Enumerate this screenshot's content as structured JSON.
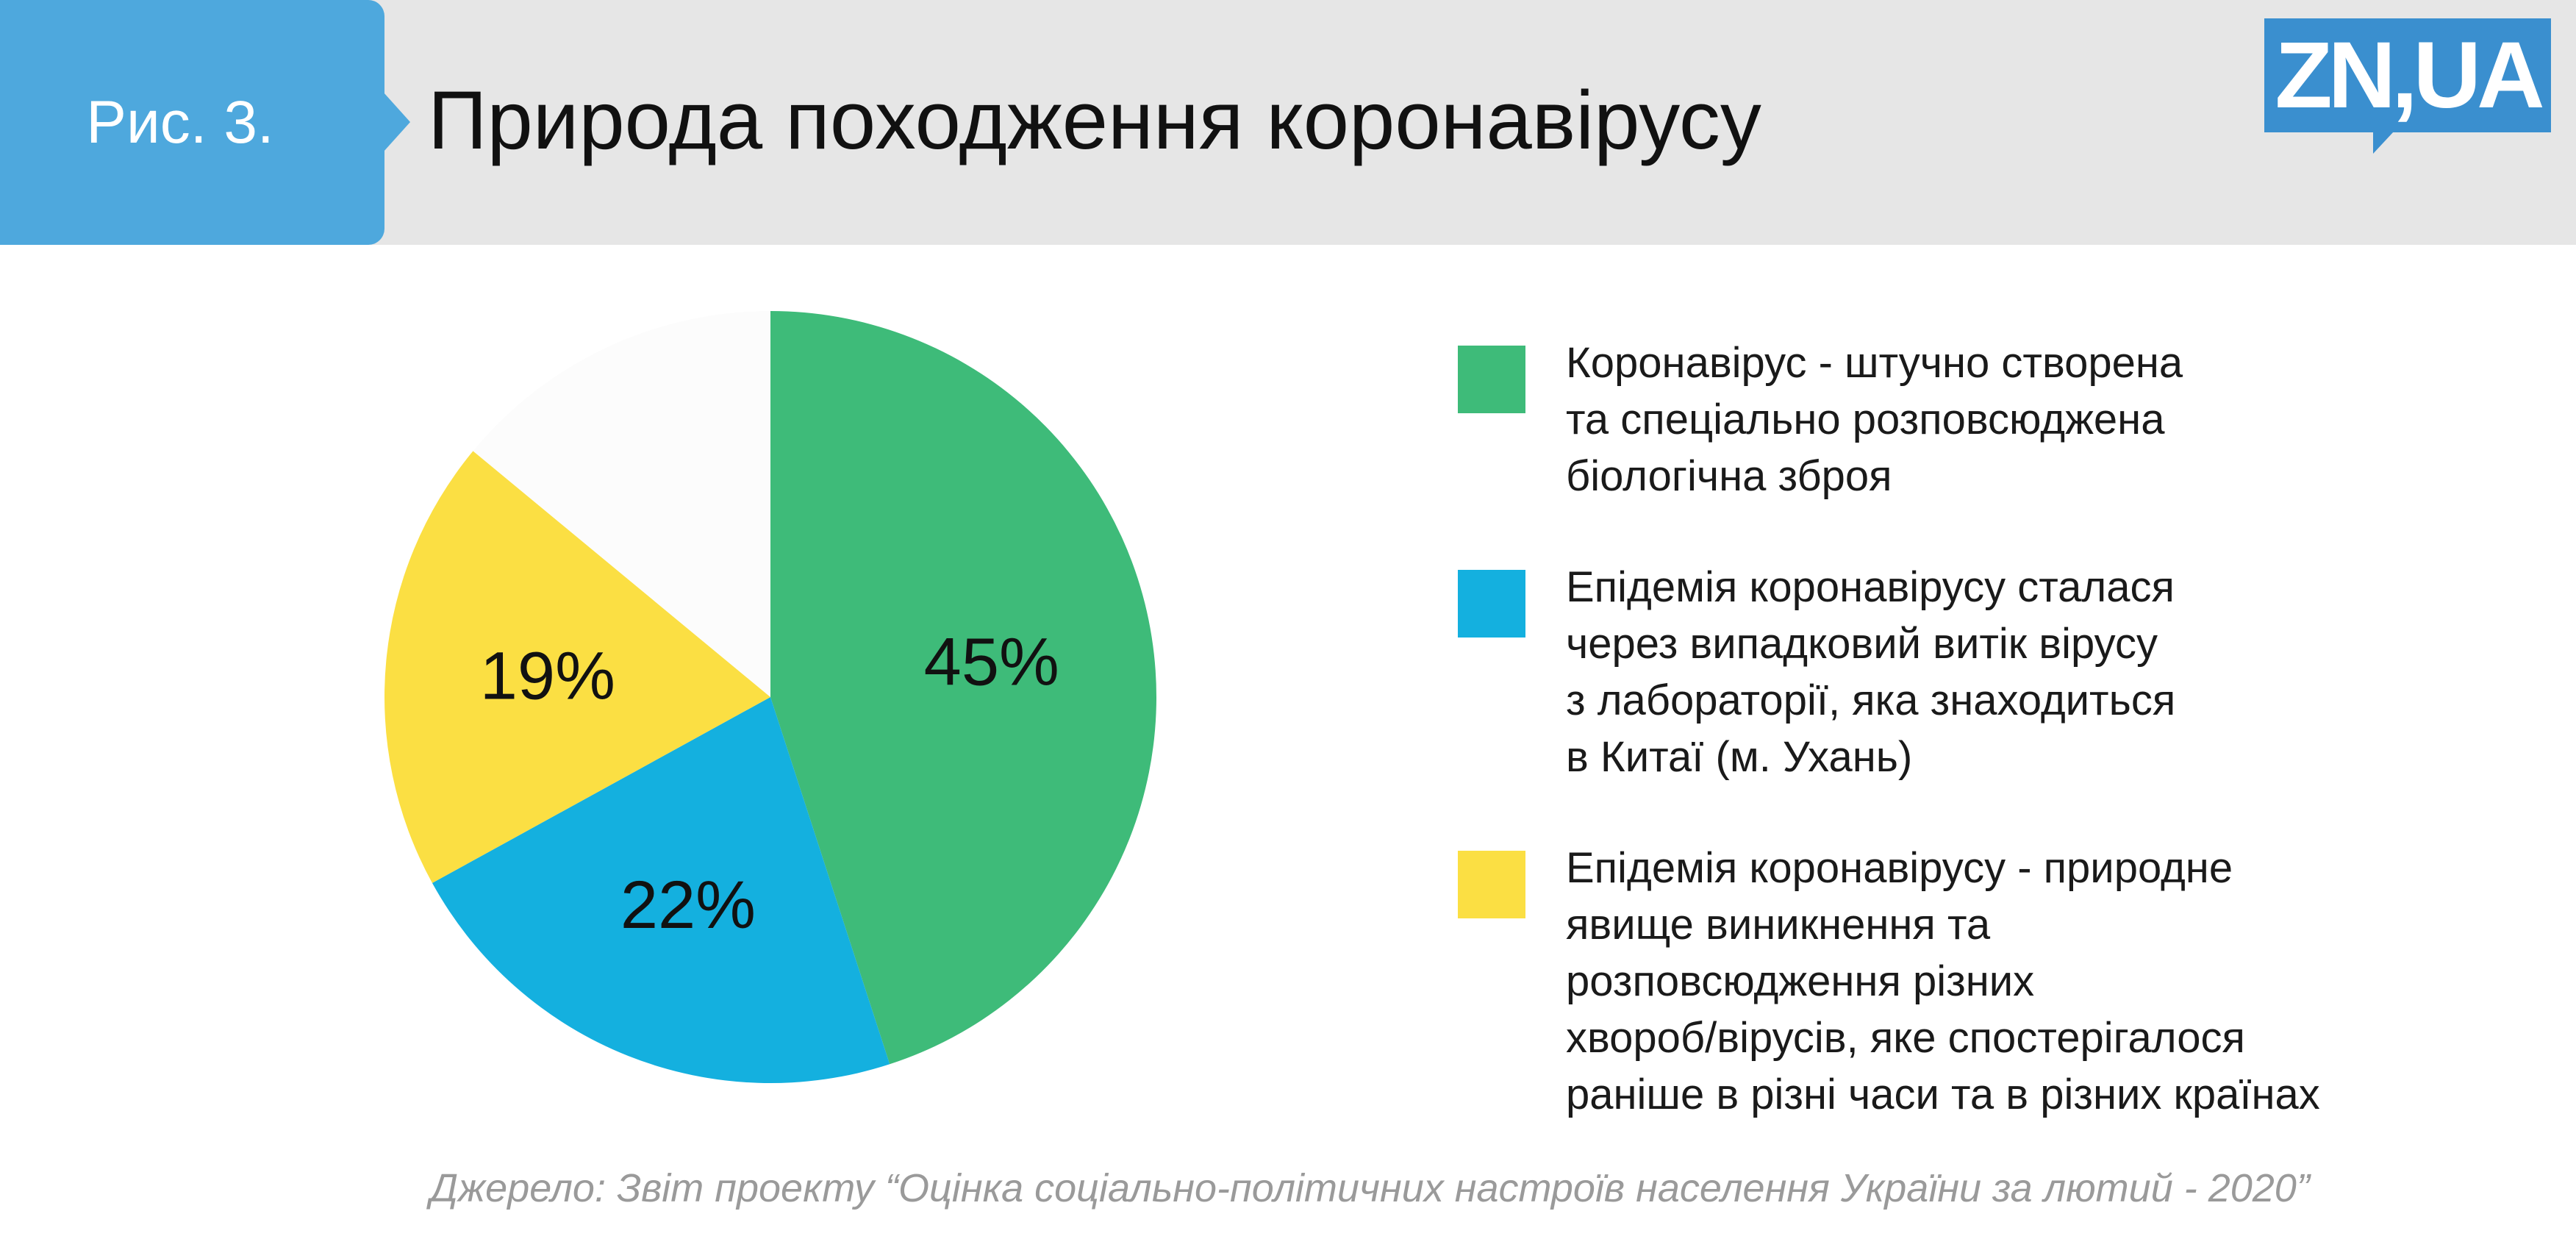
{
  "header": {
    "fig_label": "Рис. 3.",
    "title": "Природа походження коронавірусу",
    "logo": "ZN,UA"
  },
  "colors": {
    "header_bg": "#e6e6e6",
    "tab": "#4ea8dd",
    "logo": "#3a8fcf",
    "green": "#3ebb79",
    "blue": "#14b0df",
    "yellow": "#fbdf43",
    "remainder": "#fcfcfc"
  },
  "chart_data": {
    "type": "pie",
    "title": "Природа походження коронавірусу",
    "slices": [
      {
        "label": "Коронавірус - штучно створена та спеціально розповсюджена біологічна зброя",
        "value": 45,
        "display": "45%",
        "color": "#3ebb79"
      },
      {
        "label": "Епідемія коронавірусу сталася через випадковий витік вірусу з лабораторії, яка знаходиться в Китаї (м. Ухань)",
        "value": 22,
        "display": "22%",
        "color": "#14b0df"
      },
      {
        "label": "Епідемія коронавірусу - природне явище виникнення та розповсюдження різних хвороб/вірусів, яке спостерігалося раніше в різні часи та в різних країнах",
        "value": 19,
        "display": "19%",
        "color": "#fbdf43"
      },
      {
        "label": "",
        "value": 14,
        "display": "",
        "color": "#fcfcfc"
      }
    ],
    "legend_position": "right"
  },
  "legend": [
    {
      "text": "Коронавірус - штучно створена\nта спеціально розповсюджена\nбіологічна зброя",
      "color": "#3ebb79"
    },
    {
      "text": "Епідемія коронавірусу сталася\nчерез випадковий витік вірусу\nз лабораторії, яка знаходиться\nв Китаї (м. Ухань)",
      "color": "#14b0df"
    },
    {
      "text": "Епідемія коронавірусу - природне\nявище виникнення та\nрозповсюдження різних\nхвороб/вірусів, яке спостерігалося\nраніше в різні часи та в різних країнах",
      "color": "#fbdf43"
    }
  ],
  "source": "Джерело: Звіт проекту “Оцінка соціально-політичних настроїв населення України за лютий - 2020”"
}
